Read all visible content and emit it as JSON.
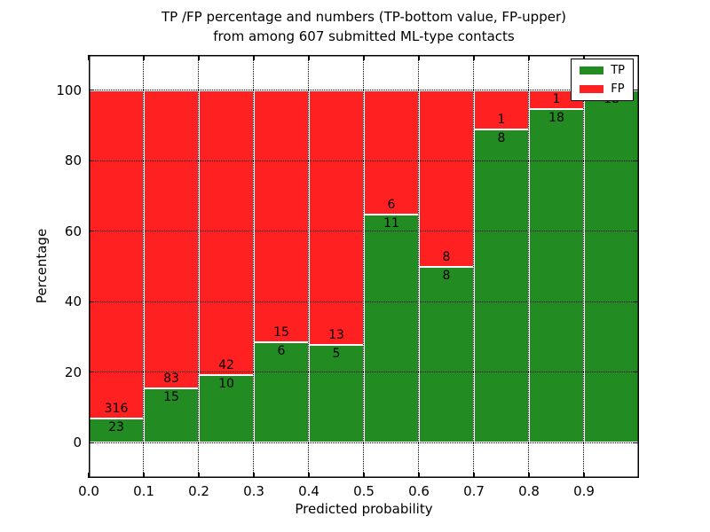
{
  "chart_data": {
    "type": "bar",
    "stacked": true,
    "normalized_to_percent": true,
    "title_lines": [
      "TP /FP percentage and numbers (TP-bottom value, FP-upper)",
      "from among 607 submitted ML-type contacts"
    ],
    "xlabel": "Predicted probability",
    "ylabel": "Percentage",
    "total_contacts": 607,
    "bin_width": 0.1,
    "bin_starts": [
      0.0,
      0.1,
      0.2,
      0.3,
      0.4,
      0.5,
      0.6,
      0.7,
      0.8,
      0.9
    ],
    "series": [
      {
        "name": "TP",
        "color": "#228B22",
        "values": [
          23,
          15,
          10,
          6,
          5,
          11,
          8,
          8,
          18,
          18
        ]
      },
      {
        "name": "FP",
        "color": "#FF2121",
        "values": [
          316,
          83,
          42,
          15,
          13,
          6,
          8,
          1,
          1,
          0
        ]
      }
    ],
    "bar_label_rule": "TP count printed just below TP/FP boundary, FP count just above it",
    "xlim": [
      0.0,
      1.0
    ],
    "ylim": [
      -10,
      110
    ],
    "xtick_labels": [
      "0.0",
      "0.1",
      "0.2",
      "0.3",
      "0.4",
      "0.5",
      "0.6",
      "0.7",
      "0.8",
      "0.9"
    ],
    "ytick_labels": [
      "0",
      "20",
      "40",
      "60",
      "80",
      "100"
    ],
    "grid": "dotted",
    "legend": {
      "position": "upper right",
      "entries": [
        "TP",
        "FP"
      ]
    }
  }
}
